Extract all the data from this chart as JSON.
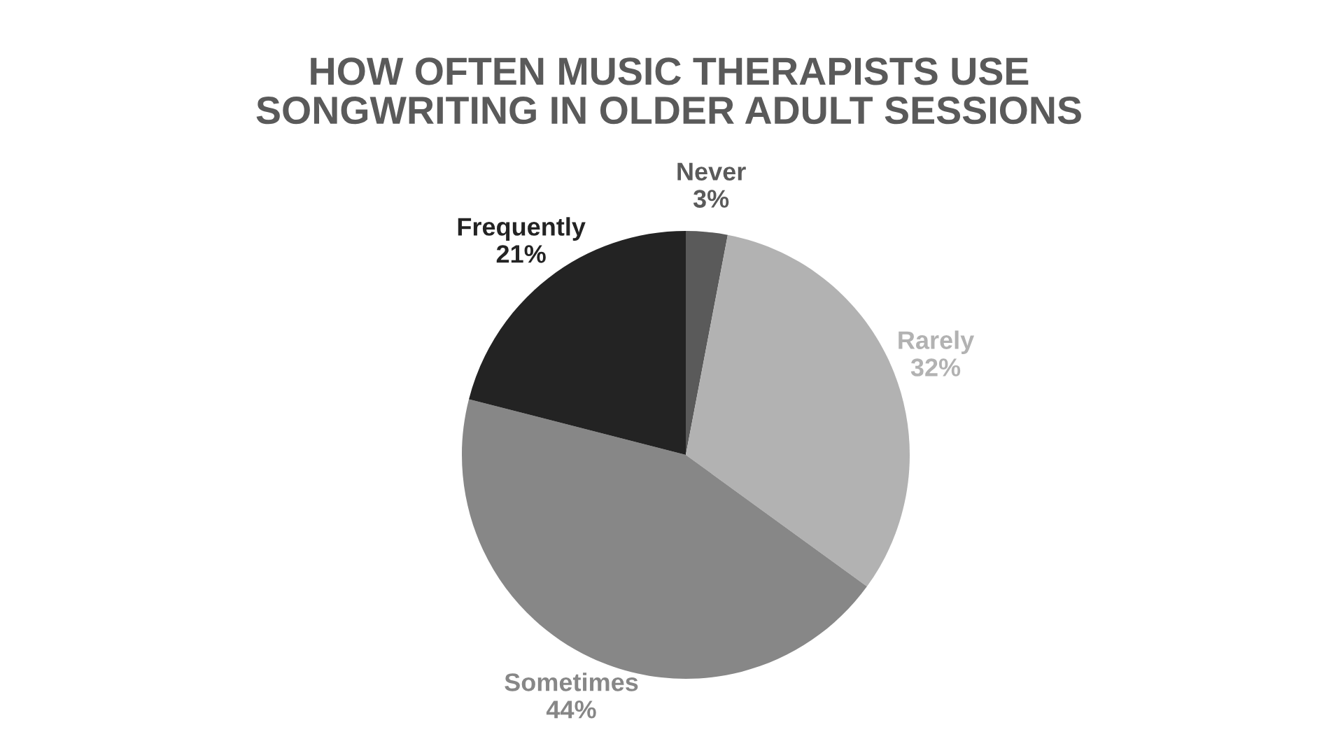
{
  "chart_data": {
    "type": "pie",
    "title": "HOW OFTEN MUSIC THERAPISTS USE SONGWRITING IN OLDER ADULT SESSIONS",
    "categories": [
      "Never",
      "Rarely",
      "Sometimes",
      "Frequently"
    ],
    "values": [
      3,
      32,
      44,
      21
    ],
    "colors": [
      "#5a5a5a",
      "#b2b2b2",
      "#878787",
      "#232323"
    ],
    "value_labels": [
      "3%",
      "32%",
      "44%",
      "21%"
    ]
  }
}
